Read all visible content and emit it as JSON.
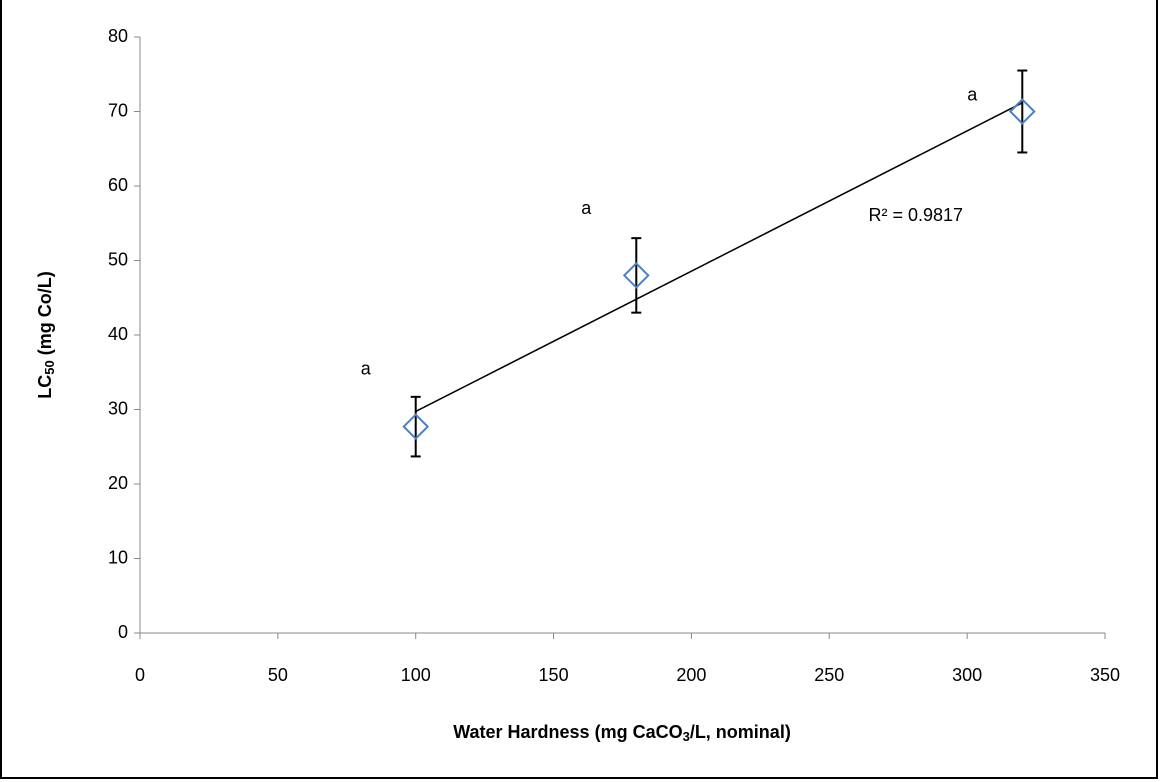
{
  "chart_data": {
    "type": "scatter",
    "xlabel": [
      "Water Hardness (mg CaCO",
      "3",
      "/L, nominal)"
    ],
    "ylabel": [
      "LC",
      "50",
      " (mg Co/L)"
    ],
    "x": [
      100,
      180,
      320
    ],
    "series": [
      {
        "color": "#4f81bd",
        "values": [
          27.7,
          48,
          70
        ],
        "errors": [
          4,
          5,
          5.5
        ],
        "point_labels": [
          "a",
          "a",
          "a"
        ]
      }
    ],
    "trendline": {
      "type": "linear",
      "label": "R² = 0.9817"
    },
    "xlim": [
      0,
      350
    ],
    "xticks": [
      0,
      50,
      100,
      150,
      200,
      250,
      300,
      350
    ],
    "ylim": [
      0,
      80
    ],
    "yticks": [
      0,
      10,
      20,
      30,
      40,
      50,
      60,
      70,
      80
    ],
    "grid": false
  }
}
